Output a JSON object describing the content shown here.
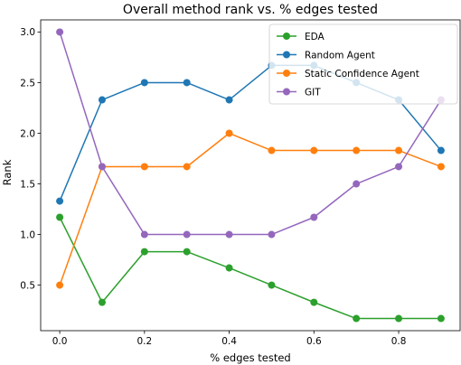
{
  "chart_data": {
    "type": "line",
    "title": "Overall method rank vs. % edges tested",
    "xlabel": "% edges tested",
    "ylabel": "Rank",
    "xlim": [
      -0.045,
      0.945
    ],
    "ylim": [
      0.05,
      3.12
    ],
    "x": [
      0.0,
      0.1,
      0.2,
      0.3,
      0.4,
      0.5,
      0.6,
      0.7,
      0.8,
      0.9
    ],
    "xticks": [
      0.0,
      0.2,
      0.4,
      0.6,
      0.8
    ],
    "xtick_labels": [
      "0.0",
      "0.2",
      "0.4",
      "0.6",
      "0.8"
    ],
    "yticks": [
      0.5,
      1.0,
      1.5,
      2.0,
      2.5,
      3.0
    ],
    "ytick_labels": [
      "0.5",
      "1.0",
      "1.5",
      "2.0",
      "2.5",
      "3.0"
    ],
    "grid": false,
    "legend_position": "top-right",
    "series": [
      {
        "name": "EDA",
        "color": "#2ca02c",
        "values": [
          1.17,
          0.33,
          0.83,
          0.83,
          0.67,
          0.5,
          0.33,
          0.17,
          0.17,
          0.17
        ]
      },
      {
        "name": "Random Agent",
        "color": "#1f77b4",
        "values": [
          1.33,
          2.33,
          2.5,
          2.5,
          2.33,
          2.67,
          2.67,
          2.5,
          2.33,
          1.83
        ]
      },
      {
        "name": "Static Confidence Agent",
        "color": "#ff7f0e",
        "values": [
          0.5,
          1.67,
          1.67,
          1.67,
          2.0,
          1.83,
          1.83,
          1.83,
          1.83,
          1.67
        ]
      },
      {
        "name": "GIT",
        "color": "#9467bd",
        "values": [
          3.0,
          1.67,
          1.0,
          1.0,
          1.0,
          1.0,
          1.17,
          1.5,
          1.67,
          2.33
        ]
      }
    ]
  }
}
